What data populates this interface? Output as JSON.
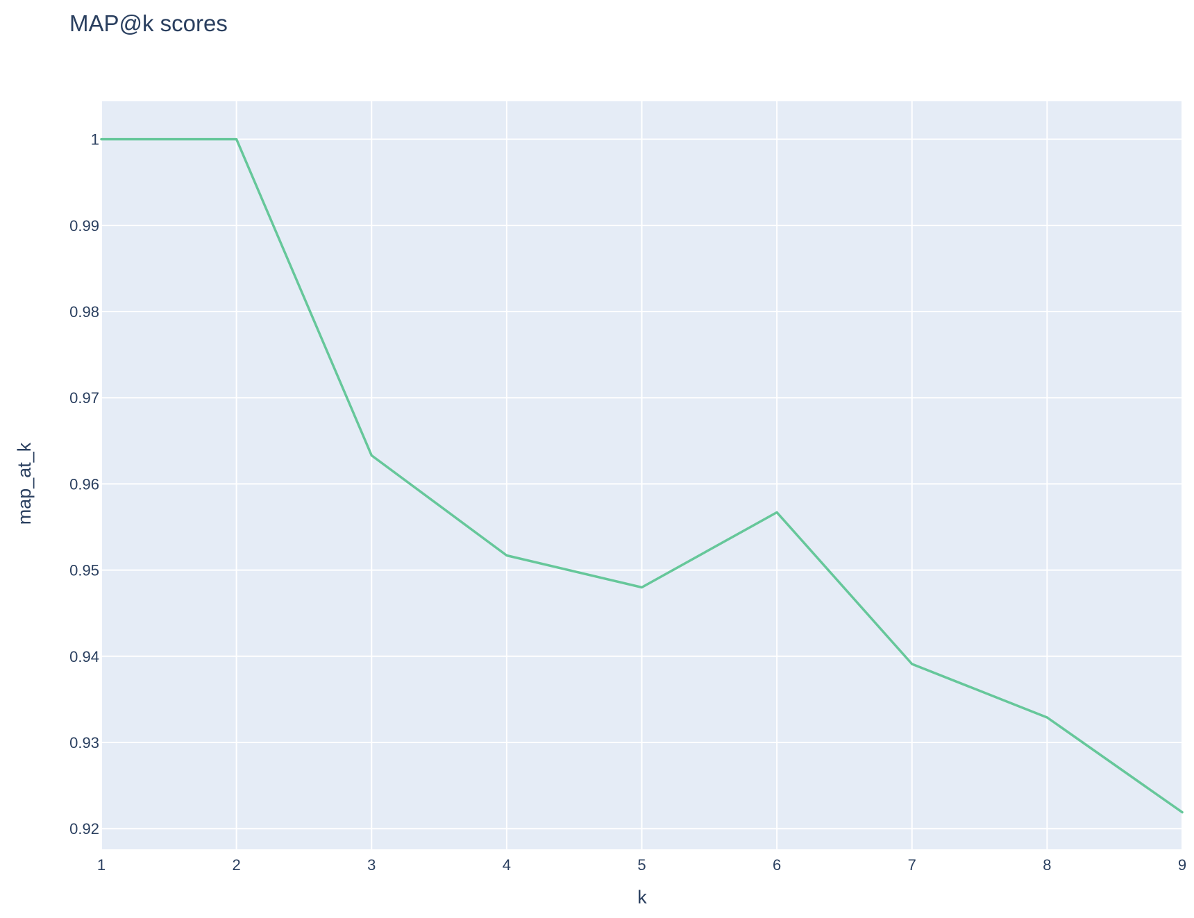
{
  "chart_data": {
    "type": "line",
    "title": "MAP@k scores",
    "xlabel": "k",
    "ylabel": "map_at_k",
    "x": [
      1,
      2,
      3,
      4,
      5,
      6,
      7,
      8,
      9
    ],
    "xlim": [
      1,
      9
    ],
    "ylim": [
      0.9176,
      1.0044
    ],
    "x_ticks": [
      1,
      2,
      3,
      4,
      5,
      6,
      7,
      8,
      9
    ],
    "x_tick_labels": [
      "1",
      "2",
      "3",
      "4",
      "5",
      "6",
      "7",
      "8",
      "9"
    ],
    "y_ticks": [
      0.92,
      0.93,
      0.94,
      0.95,
      0.96,
      0.97,
      0.98,
      0.99,
      1.0
    ],
    "y_tick_labels": [
      "0.92",
      "0.93",
      "0.94",
      "0.95",
      "0.96",
      "0.97",
      "0.98",
      "0.99",
      "1"
    ],
    "grid": true,
    "legend": false,
    "series": [
      {
        "values": [
          1.0,
          1.0,
          0.9633,
          0.9517,
          0.948,
          0.9567,
          0.9391,
          0.9329,
          0.9219
        ],
        "color": "#66c79a"
      }
    ]
  },
  "colors": {
    "plot_background": "#e5ecf6",
    "grid": "#ffffff",
    "text": "#2a3f5f"
  }
}
